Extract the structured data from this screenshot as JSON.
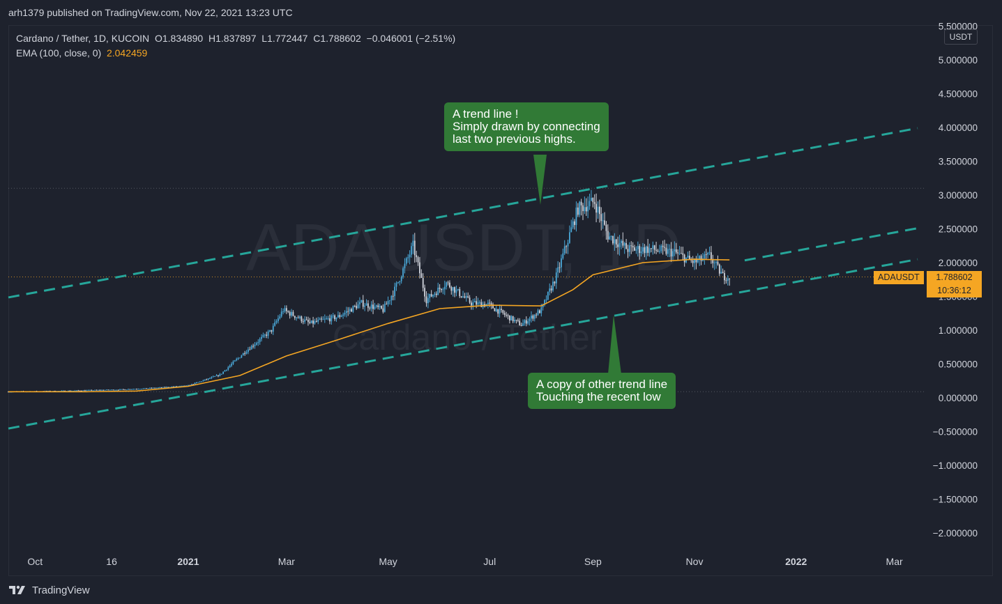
{
  "topbar": {
    "published": "arh1379 published on TradingView.com, Nov 22, 2021 13:23 UTC"
  },
  "legend": {
    "line1": "Cardano / Tether, 1D, KUCOIN  O1.834890  H1.837897  L1.772447  C1.788602  −0.046001 (−2.51%)",
    "ema_label": "EMA (100, close, 0)",
    "ema_value": "2.042459"
  },
  "watermark": {
    "symbol": "ADAUSDT, 1D",
    "name": "Cardano / Tether"
  },
  "axis": {
    "unit": "USDT"
  },
  "price_tag": {
    "symbol": "ADAUSDT",
    "price": "1.788602",
    "countdown": "10:36:12"
  },
  "callouts": {
    "top": "A trend line !\nSimply drawn by connecting\nlast two previous highs.",
    "bottom": "A copy of other trend line\nTouching the recent low"
  },
  "footer": {
    "brand": "TradingView"
  },
  "colors": {
    "background": "#1e222d",
    "candle_up": "#4aa8d8",
    "candle_down": "#d1d4dc",
    "ema": "#f5a623",
    "trendline": "#26a69a",
    "callout": "#317a36",
    "price_tag": "#f5a623"
  },
  "chart_data": {
    "type": "line",
    "title": "Cardano / Tether, 1D, KUCOIN",
    "ylabel": "USDT",
    "y_ticks": [
      "5.500000",
      "5.000000",
      "4.500000",
      "4.000000",
      "3.500000",
      "3.000000",
      "2.500000",
      "2.000000",
      "1.500000",
      "1.000000",
      "0.500000",
      "0.000000",
      "−0.500000",
      "−1.000000",
      "−1.500000",
      "−2.000000"
    ],
    "x_ticks": [
      "Oct",
      "16",
      "2021",
      "Mar",
      "May",
      "Jul",
      "Sep",
      "Nov",
      "2022",
      "Mar"
    ],
    "ylim": [
      -2.3,
      5.6
    ],
    "series": [
      {
        "name": "EMA (100, close, 0)",
        "points": [
          [
            "2020-09-15",
            0.09
          ],
          [
            "2020-11-01",
            0.09
          ],
          [
            "2020-12-01",
            0.1
          ],
          [
            "2021-01-01",
            0.17
          ],
          [
            "2021-02-01",
            0.33
          ],
          [
            "2021-03-01",
            0.62
          ],
          [
            "2021-04-01",
            0.86
          ],
          [
            "2021-05-01",
            1.1
          ],
          [
            "2021-06-01",
            1.32
          ],
          [
            "2021-07-01",
            1.37
          ],
          [
            "2021-08-01",
            1.36
          ],
          [
            "2021-08-20",
            1.6
          ],
          [
            "2021-09-01",
            1.82
          ],
          [
            "2021-10-01",
            2.0
          ],
          [
            "2021-11-01",
            2.05
          ],
          [
            "2021-11-22",
            2.04
          ]
        ]
      },
      {
        "name": "Price (close)",
        "points": [
          [
            "2020-09-15",
            0.09
          ],
          [
            "2020-10-15",
            0.1
          ],
          [
            "2020-11-20",
            0.12
          ],
          [
            "2020-12-15",
            0.15
          ],
          [
            "2021-01-01",
            0.18
          ],
          [
            "2021-01-20",
            0.34
          ],
          [
            "2021-02-05",
            0.7
          ],
          [
            "2021-02-20",
            1.0
          ],
          [
            "2021-02-27",
            1.3
          ],
          [
            "2021-03-15",
            1.1
          ],
          [
            "2021-04-01",
            1.2
          ],
          [
            "2021-04-15",
            1.4
          ],
          [
            "2021-04-28",
            1.3
          ],
          [
            "2021-05-05",
            1.6
          ],
          [
            "2021-05-16",
            2.25
          ],
          [
            "2021-05-24",
            1.45
          ],
          [
            "2021-06-05",
            1.7
          ],
          [
            "2021-06-20",
            1.4
          ],
          [
            "2021-06-30",
            1.38
          ],
          [
            "2021-07-20",
            1.08
          ],
          [
            "2021-08-01",
            1.3
          ],
          [
            "2021-08-10",
            1.8
          ],
          [
            "2021-08-23",
            2.8
          ],
          [
            "2021-09-02",
            2.9
          ],
          [
            "2021-09-10",
            2.4
          ],
          [
            "2021-09-22",
            2.2
          ],
          [
            "2021-10-05",
            2.2
          ],
          [
            "2021-10-20",
            2.15
          ],
          [
            "2021-11-01",
            2.0
          ],
          [
            "2021-11-10",
            2.1
          ],
          [
            "2021-11-18",
            1.8
          ],
          [
            "2021-11-22",
            1.79
          ]
        ]
      }
    ],
    "trendlines": [
      {
        "name": "upper",
        "p1": [
          "2021-05-16",
          2.6
        ],
        "p2": [
          "2021-09-02",
          3.1
        ]
      },
      {
        "name": "middle",
        "p1": [
          "2021-05-16",
          1.12
        ],
        "p2": [
          "2021-09-02",
          1.62
        ]
      },
      {
        "name": "lower",
        "p1": [
          "2021-05-16",
          0.66
        ],
        "p2": [
          "2021-09-02",
          1.16
        ]
      }
    ],
    "horizontal_levels": [
      3.1,
      1.7886,
      0.09
    ],
    "last_price": 1.788602,
    "grid": false
  }
}
